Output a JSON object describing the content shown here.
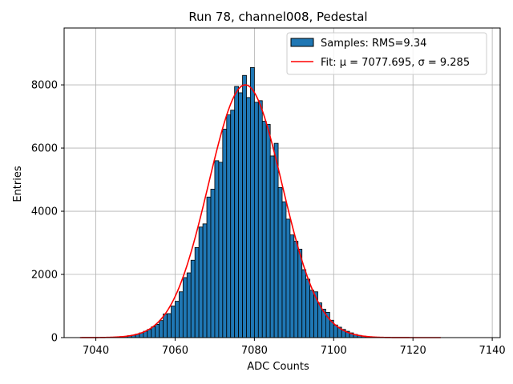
{
  "chart_data": {
    "type": "bar",
    "title": "Run 78, channel008, Pedestal",
    "xlabel": "ADC Counts",
    "ylabel": "Entries",
    "xlim": [
      7032,
      7142
    ],
    "ylim": [
      0,
      9800
    ],
    "xticks": [
      7040,
      7060,
      7080,
      7100,
      7120,
      7140
    ],
    "yticks": [
      0,
      2000,
      4000,
      6000,
      8000
    ],
    "grid": true,
    "legend_position": "top-right",
    "bin_width": 1,
    "bins": [
      [
        7046,
        30
      ],
      [
        7047,
        40
      ],
      [
        7048,
        60
      ],
      [
        7049,
        80
      ],
      [
        7050,
        110
      ],
      [
        7051,
        150
      ],
      [
        7052,
        200
      ],
      [
        7053,
        260
      ],
      [
        7054,
        340
      ],
      [
        7055,
        420
      ],
      [
        7056,
        540
      ],
      [
        7057,
        750
      ],
      [
        7058,
        760
      ],
      [
        7059,
        1000
      ],
      [
        7060,
        1150
      ],
      [
        7061,
        1450
      ],
      [
        7062,
        1900
      ],
      [
        7063,
        2050
      ],
      [
        7064,
        2450
      ],
      [
        7065,
        2850
      ],
      [
        7066,
        3500
      ],
      [
        7067,
        3600
      ],
      [
        7068,
        4450
      ],
      [
        7069,
        4700
      ],
      [
        7070,
        5600
      ],
      [
        7071,
        5550
      ],
      [
        7072,
        6600
      ],
      [
        7073,
        7050
      ],
      [
        7074,
        7200
      ],
      [
        7075,
        7950
      ],
      [
        7076,
        7750
      ],
      [
        7077,
        8300
      ],
      [
        7078,
        7600
      ],
      [
        7079,
        8550
      ],
      [
        7080,
        7450
      ],
      [
        7081,
        7500
      ],
      [
        7082,
        6850
      ],
      [
        7083,
        6750
      ],
      [
        7084,
        5750
      ],
      [
        7085,
        6150
      ],
      [
        7086,
        4750
      ],
      [
        7087,
        4300
      ],
      [
        7088,
        3750
      ],
      [
        7089,
        3250
      ],
      [
        7090,
        3050
      ],
      [
        7091,
        2800
      ],
      [
        7092,
        2150
      ],
      [
        7093,
        1850
      ],
      [
        7094,
        1500
      ],
      [
        7095,
        1450
      ],
      [
        7096,
        1100
      ],
      [
        7097,
        900
      ],
      [
        7098,
        800
      ],
      [
        7099,
        550
      ],
      [
        7100,
        400
      ],
      [
        7101,
        330
      ],
      [
        7102,
        260
      ],
      [
        7103,
        200
      ],
      [
        7104,
        150
      ],
      [
        7105,
        100
      ],
      [
        7106,
        70
      ],
      [
        7107,
        50
      ],
      [
        7108,
        30
      ],
      [
        7109,
        20
      ],
      [
        7110,
        10
      ]
    ],
    "fit": {
      "mu": 7077.695,
      "sigma": 9.285,
      "amplitude": 8000,
      "x_range": [
        7036,
        7127
      ]
    },
    "series": [
      {
        "name": "Samples: RMS=9.34",
        "kind": "histogram",
        "color": "#1f77b4",
        "edgecolor": "#000000"
      },
      {
        "name": "Fit: μ = 7077.695, σ = 9.285",
        "kind": "line",
        "color": "#ff0000"
      }
    ]
  }
}
